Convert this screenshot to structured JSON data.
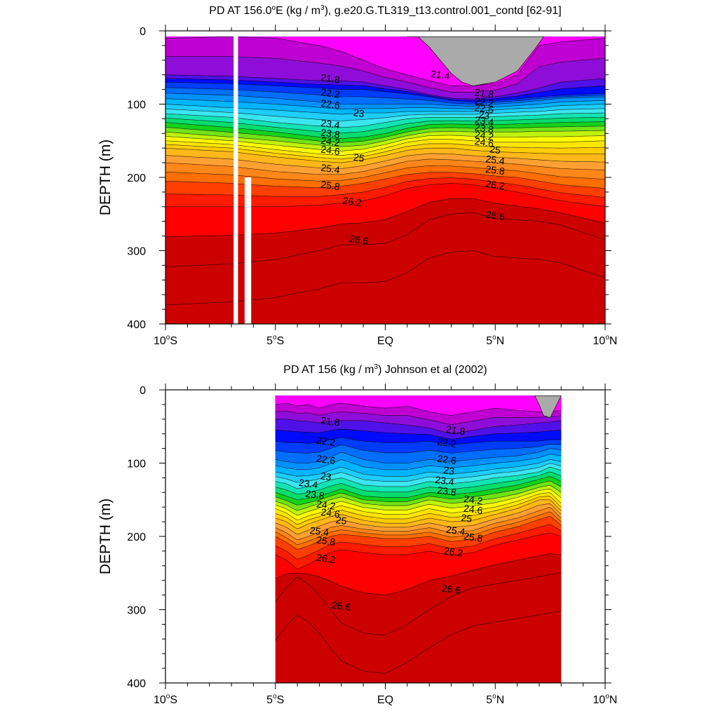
{
  "chart_data": [
    {
      "type": "heatmap",
      "title": "PD AT 156.0°E (kg / m³), g.e20.G.TL319_t13.control.001_contd [62-91]",
      "title_parts": {
        "prefix": "PD AT 156.0",
        "deg": "o",
        "mid": "E (kg / m",
        "sup": "3",
        "suffix": "), g.e20.G.TL319_t13.control.001_contd [62-91]"
      },
      "ylabel": "DEPTH (m)",
      "xlim": [
        -10,
        10
      ],
      "ylim": [
        0,
        400
      ],
      "x_ticks": [
        {
          "v": -10,
          "main": "10",
          "deg": "o",
          "hemi": "S"
        },
        {
          "v": -5,
          "main": "5",
          "deg": "o",
          "hemi": "S"
        },
        {
          "v": 0,
          "main": "EQ",
          "deg": "",
          "hemi": ""
        },
        {
          "v": 5,
          "main": "5",
          "deg": "o",
          "hemi": "N"
        },
        {
          "v": 10,
          "main": "10",
          "deg": "o",
          "hemi": "N"
        }
      ],
      "y_ticks": [
        0,
        100,
        200,
        300,
        400
      ],
      "data_range_x": [
        -10,
        10
      ],
      "levels": [
        21.4,
        21.6,
        21.8,
        22.0,
        22.2,
        22.4,
        22.6,
        22.8,
        23.0,
        23.2,
        23.4,
        23.6,
        23.8,
        24.0,
        24.2,
        24.4,
        24.6,
        24.8,
        25.0,
        25.2,
        25.4,
        25.6,
        25.8,
        26.0,
        26.2,
        26.4,
        26.6,
        26.8
      ],
      "isopycnal_depth_m": {
        "x": [
          -10,
          -7,
          -5,
          -3,
          -2,
          -1,
          0,
          1,
          2,
          3,
          4,
          5,
          6,
          7,
          8,
          10
        ],
        "21.4": [
          10,
          8,
          10,
          20,
          28,
          40,
          52,
          60,
          68,
          75,
          75,
          72,
          60,
          20,
          15,
          10
        ],
        "21.8": [
          60,
          62,
          65,
          68,
          68,
          70,
          75,
          80,
          87,
          92,
          93,
          90,
          85,
          78,
          70,
          65
        ],
        "22.2": [
          70,
          72,
          75,
          78,
          80,
          80,
          83,
          86,
          90,
          95,
          97,
          95,
          93,
          90,
          88,
          85
        ],
        "22.6": [
          85,
          88,
          92,
          97,
          100,
          100,
          100,
          100,
          100,
          102,
          103,
          100,
          98,
          95,
          92,
          90
        ],
        "23.0": [
          100,
          105,
          108,
          112,
          114,
          112,
          112,
          110,
          110,
          110,
          110,
          108,
          106,
          105,
          102,
          100
        ],
        "23.4": [
          113,
          118,
          125,
          130,
          132,
          130,
          125,
          120,
          118,
          118,
          118,
          117,
          116,
          115,
          113,
          112
        ],
        "23.8": [
          125,
          132,
          138,
          145,
          147,
          145,
          140,
          133,
          128,
          127,
          128,
          128,
          127,
          126,
          125,
          124
        ],
        "24.2": [
          138,
          145,
          150,
          156,
          158,
          156,
          150,
          143,
          138,
          137,
          138,
          138,
          138,
          137,
          137,
          136
        ],
        "24.6": [
          150,
          155,
          162,
          168,
          170,
          167,
          160,
          152,
          148,
          148,
          150,
          152,
          152,
          152,
          152,
          150
        ],
        "25.0": [
          160,
          165,
          172,
          178,
          180,
          176,
          170,
          163,
          160,
          160,
          163,
          165,
          166,
          167,
          168,
          168
        ],
        "25.4": [
          180,
          185,
          192,
          196,
          196,
          192,
          185,
          178,
          175,
          176,
          178,
          180,
          182,
          185,
          188,
          190
        ],
        "25.8": [
          205,
          208,
          212,
          214,
          212,
          208,
          202,
          196,
          193,
          193,
          195,
          198,
          200,
          205,
          210,
          215
        ],
        "26.2": [
          240,
          240,
          240,
          238,
          235,
          232,
          225,
          215,
          210,
          208,
          210,
          215,
          220,
          226,
          232,
          240
        ],
        "26.6": [
          322,
          318,
          312,
          300,
          292,
          292,
          290,
          278,
          258,
          250,
          248,
          256,
          258,
          260,
          265,
          285
        ]
      },
      "contour_labels": [
        {
          "text": "21.4",
          "x": 2.5,
          "depth": 60
        },
        {
          "text": "21.8",
          "x": -2.5,
          "depth": 65
        },
        {
          "text": "22.2",
          "x": -2.5,
          "depth": 85
        },
        {
          "text": "22.6",
          "x": -2.5,
          "depth": 100
        },
        {
          "text": "23",
          "x": -1.2,
          "depth": 112
        },
        {
          "text": "23.4",
          "x": -2.5,
          "depth": 127
        },
        {
          "text": "23.8",
          "x": -2.5,
          "depth": 140
        },
        {
          "text": "24.2",
          "x": -2.5,
          "depth": 151
        },
        {
          "text": "24.6",
          "x": -2.5,
          "depth": 163
        },
        {
          "text": "25",
          "x": -1.2,
          "depth": 173
        },
        {
          "text": "25.4",
          "x": -2.5,
          "depth": 188
        },
        {
          "text": "25.8",
          "x": -2.5,
          "depth": 211
        },
        {
          "text": "26.2",
          "x": -1.5,
          "depth": 233
        },
        {
          "text": "26.6",
          "x": -1.2,
          "depth": 285
        },
        {
          "text": "21.8",
          "x": 4.5,
          "depth": 85
        },
        {
          "text": "22.2",
          "x": 4.5,
          "depth": 97
        },
        {
          "text": "22.6",
          "x": 4.5,
          "depth": 106
        },
        {
          "text": "23",
          "x": 4.5,
          "depth": 115
        },
        {
          "text": "23.4",
          "x": 4.5,
          "depth": 123
        },
        {
          "text": "23.8",
          "x": 4.5,
          "depth": 133
        },
        {
          "text": "24.2",
          "x": 4.5,
          "depth": 143
        },
        {
          "text": "24.6",
          "x": 4.5,
          "depth": 152
        },
        {
          "text": "25",
          "x": 5.0,
          "depth": 162
        },
        {
          "text": "25.4",
          "x": 5.0,
          "depth": 176
        },
        {
          "text": "25.8",
          "x": 5.0,
          "depth": 190
        },
        {
          "text": "26.2",
          "x": 5.0,
          "depth": 210
        },
        {
          "text": "26.6",
          "x": 5.0,
          "depth": 252
        }
      ],
      "land_mask": {
        "x": [
          1.0,
          1.5,
          2.0,
          2.5,
          3.0,
          3.5,
          4.0,
          5.0,
          6.0,
          6.8,
          7.2
        ],
        "depth": [
          0,
          8,
          22,
          40,
          58,
          70,
          75,
          70,
          55,
          25,
          0
        ]
      },
      "white_gaps": [
        {
          "x0": -6.9,
          "x1": -6.7,
          "top": 0,
          "bottom": 400
        },
        {
          "x0": -6.4,
          "x1": -6.1,
          "top": 200,
          "bottom": 400
        }
      ]
    },
    {
      "type": "heatmap",
      "title": "PD AT 156 (kg / m³) Johnson et al (2002)",
      "title_parts": {
        "prefix": "PD AT 156 (kg / m",
        "sup": "3",
        "suffix": ") Johnson et al (2002)"
      },
      "ylabel": "DEPTH (m)",
      "xlim": [
        -10,
        10
      ],
      "ylim": [
        0,
        400
      ],
      "x_ticks": [
        {
          "v": -10,
          "main": "10",
          "deg": "o",
          "hemi": "S"
        },
        {
          "v": -5,
          "main": "5",
          "deg": "o",
          "hemi": "S"
        },
        {
          "v": 0,
          "main": "EQ",
          "deg": "",
          "hemi": ""
        },
        {
          "v": 5,
          "main": "5",
          "deg": "o",
          "hemi": "N"
        },
        {
          "v": 10,
          "main": "10",
          "deg": "o",
          "hemi": "N"
        }
      ],
      "y_ticks": [
        0,
        100,
        200,
        300,
        400
      ],
      "data_range_x": [
        -5,
        8
      ],
      "levels": [
        21.4,
        21.6,
        21.8,
        22.0,
        22.2,
        22.4,
        22.6,
        22.8,
        23.0,
        23.2,
        23.4,
        23.6,
        23.8,
        24.0,
        24.2,
        24.4,
        24.6,
        24.8,
        25.0,
        25.2,
        25.4,
        25.6,
        25.8,
        26.0,
        26.2,
        26.4,
        26.6,
        26.8
      ],
      "isopycnal_depth_m": {
        "x": [
          -5,
          -4.5,
          -4,
          -3.5,
          -3,
          -2.5,
          -2,
          -1,
          0,
          1,
          2,
          3,
          4,
          5,
          6,
          7,
          7.5,
          8
        ],
        "21.4": [
          20,
          18,
          22,
          20,
          25,
          20,
          18,
          22,
          25,
          22,
          30,
          35,
          30,
          25,
          28,
          30,
          30,
          28
        ],
        "21.8": [
          40,
          40,
          42,
          43,
          45,
          43,
          42,
          42,
          45,
          48,
          52,
          60,
          55,
          50,
          48,
          45,
          44,
          42
        ],
        "22.2": [
          70,
          72,
          72,
          73,
          72,
          68,
          65,
          70,
          72,
          72,
          70,
          75,
          72,
          70,
          70,
          70,
          68,
          68
        ],
        "22.6": [
          95,
          98,
          100,
          100,
          98,
          92,
          85,
          95,
          100,
          100,
          95,
          98,
          95,
          92,
          90,
          85,
          80,
          82
        ],
        "23.0": [
          112,
          115,
          118,
          117,
          115,
          110,
          105,
          115,
          118,
          118,
          112,
          115,
          112,
          108,
          105,
          100,
          95,
          98
        ],
        "23.4": [
          125,
          128,
          135,
          132,
          128,
          123,
          120,
          130,
          132,
          132,
          125,
          128,
          125,
          120,
          117,
          112,
          105,
          110
        ],
        "23.8": [
          140,
          145,
          150,
          148,
          145,
          140,
          135,
          145,
          147,
          147,
          140,
          143,
          140,
          135,
          130,
          122,
          118,
          125
        ],
        "24.2": [
          152,
          157,
          165,
          160,
          155,
          150,
          146,
          155,
          158,
          158,
          150,
          155,
          152,
          148,
          142,
          133,
          130,
          140
        ],
        "24.6": [
          162,
          168,
          178,
          172,
          168,
          162,
          158,
          166,
          170,
          170,
          162,
          168,
          165,
          160,
          152,
          142,
          140,
          155
        ],
        "25.0": [
          175,
          180,
          190,
          183,
          178,
          173,
          170,
          178,
          182,
          182,
          175,
          180,
          178,
          170,
          162,
          150,
          150,
          165
        ],
        "25.4": [
          188,
          195,
          205,
          200,
          194,
          188,
          185,
          190,
          193,
          193,
          188,
          195,
          192,
          182,
          175,
          165,
          160,
          175
        ],
        "25.8": [
          200,
          208,
          218,
          213,
          207,
          200,
          197,
          200,
          203,
          203,
          200,
          207,
          204,
          194,
          187,
          177,
          172,
          185
        ],
        "26.2": [
          225,
          232,
          245,
          238,
          230,
          222,
          218,
          222,
          225,
          225,
          220,
          226,
          222,
          212,
          205,
          198,
          195,
          200
        ],
        "26.6": [
          290,
          270,
          255,
          265,
          280,
          300,
          318,
          332,
          335,
          320,
          300,
          282,
          270,
          265,
          260,
          255,
          252,
          250
        ]
      },
      "contour_labels": [
        {
          "text": "21.8",
          "x": -2.5,
          "depth": 43
        },
        {
          "text": "22.2",
          "x": -2.7,
          "depth": 70
        },
        {
          "text": "22.6",
          "x": -2.7,
          "depth": 95
        },
        {
          "text": "23",
          "x": -2.7,
          "depth": 118
        },
        {
          "text": "23.4",
          "x": -3.5,
          "depth": 128
        },
        {
          "text": "23.8",
          "x": -3.2,
          "depth": 143
        },
        {
          "text": "24.2",
          "x": -2.7,
          "depth": 157
        },
        {
          "text": "24.6",
          "x": -2.5,
          "depth": 168
        },
        {
          "text": "25",
          "x": -2.0,
          "depth": 178
        },
        {
          "text": "25.4",
          "x": -3.0,
          "depth": 193
        },
        {
          "text": "25.8",
          "x": -2.7,
          "depth": 206
        },
        {
          "text": "26.2",
          "x": -2.7,
          "depth": 230
        },
        {
          "text": "26.6",
          "x": -2.0,
          "depth": 295
        },
        {
          "text": "21.8",
          "x": 3.2,
          "depth": 55
        },
        {
          "text": "22.2",
          "x": 2.8,
          "depth": 72
        },
        {
          "text": "22.6",
          "x": 2.8,
          "depth": 95
        },
        {
          "text": "23",
          "x": 2.9,
          "depth": 110
        },
        {
          "text": "23.4",
          "x": 2.7,
          "depth": 124
        },
        {
          "text": "23.8",
          "x": 2.8,
          "depth": 138
        },
        {
          "text": "24.2",
          "x": 4.0,
          "depth": 150
        },
        {
          "text": "24.6",
          "x": 4.0,
          "depth": 163
        },
        {
          "text": "25",
          "x": 3.7,
          "depth": 175
        },
        {
          "text": "25.4",
          "x": 3.2,
          "depth": 192
        },
        {
          "text": "25.8",
          "x": 4.0,
          "depth": 201
        },
        {
          "text": "26.2",
          "x": 3.1,
          "depth": 221
        },
        {
          "text": "26.6",
          "x": 3.0,
          "depth": 272
        }
      ],
      "land_mask": {
        "x": [
          6.8,
          7.0,
          7.2,
          7.5,
          8.0
        ],
        "depth": [
          0,
          20,
          35,
          38,
          0
        ]
      },
      "white_gaps": []
    }
  ]
}
